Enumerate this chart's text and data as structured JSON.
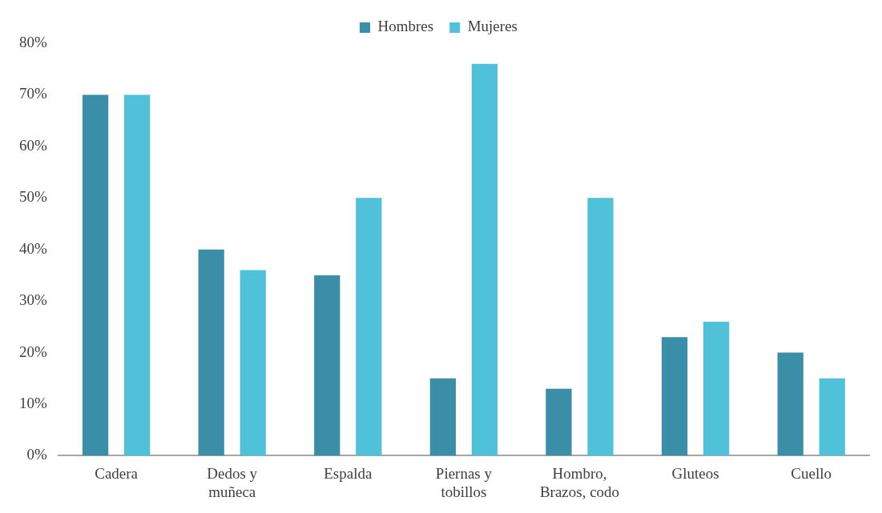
{
  "chart_data": {
    "type": "bar",
    "categories": [
      "Cadera",
      "Dedos y muñeca",
      "Espalda",
      "Piernas y tobillos",
      "Hombro, Brazos, codo",
      "Gluteos",
      "Cuello"
    ],
    "series": [
      {
        "name": "Hombres",
        "color": "#3b8ea8",
        "values": [
          70,
          40,
          35,
          15,
          13,
          23,
          20
        ]
      },
      {
        "name": "Mujeres",
        "color": "#4fc1d9",
        "values": [
          70,
          36,
          50,
          76,
          50,
          26,
          15
        ]
      }
    ],
    "ylim": [
      0,
      80
    ],
    "yticks": [
      {
        "value": 0,
        "label": "0%"
      },
      {
        "value": 10,
        "label": "10%"
      },
      {
        "value": 20,
        "label": "20%"
      },
      {
        "value": 30,
        "label": "30%"
      },
      {
        "value": 40,
        "label": "40%"
      },
      {
        "value": 50,
        "label": "50%"
      },
      {
        "value": 60,
        "label": "60%"
      },
      {
        "value": 70,
        "label": "70%"
      },
      {
        "value": 80,
        "label": "80%"
      }
    ],
    "grid": false,
    "legend": "top"
  }
}
